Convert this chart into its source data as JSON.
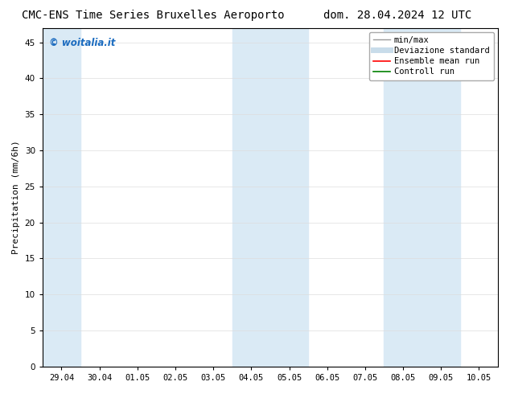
{
  "title_left": "CMC-ENS Time Series Bruxelles Aeroporto",
  "title_right": "dom. 28.04.2024 12 UTC",
  "ylabel": "Precipitation (mm/6h)",
  "xlabel_ticks": [
    "29.04",
    "30.04",
    "01.05",
    "02.05",
    "03.05",
    "04.05",
    "05.05",
    "06.05",
    "07.05",
    "08.05",
    "09.05",
    "10.05"
  ],
  "ylim": [
    0,
    47
  ],
  "yticks": [
    0,
    5,
    10,
    15,
    20,
    25,
    30,
    35,
    40,
    45
  ],
  "background_color": "#ffffff",
  "plot_bg_color": "#ffffff",
  "shaded_color": "#daeaf5",
  "watermark_text": "© woitalia.it",
  "watermark_color": "#1a6bbf",
  "legend_items": [
    {
      "label": "min/max",
      "color": "#999999",
      "lw": 1.0
    },
    {
      "label": "Deviazione standard",
      "color": "#c8dcea",
      "lw": 5
    },
    {
      "label": "Ensemble mean run",
      "color": "#ff0000",
      "lw": 1.2
    },
    {
      "label": "Controll run",
      "color": "#008000",
      "lw": 1.2
    }
  ],
  "title_fontsize": 10,
  "tick_fontsize": 7.5,
  "ylabel_fontsize": 8,
  "legend_fontsize": 7.5,
  "grid_color": "#dddddd",
  "spine_color": "#000000"
}
